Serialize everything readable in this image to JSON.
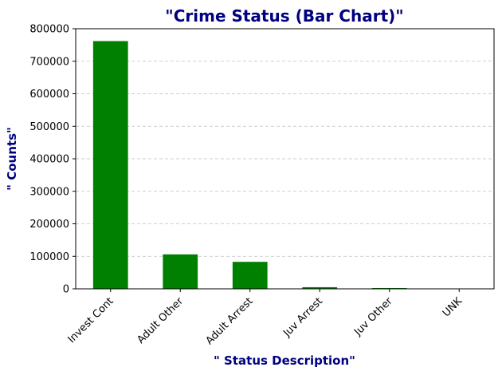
{
  "chart_data": {
    "type": "bar",
    "title": "\"Crime Status (Bar Chart)\"",
    "xlabel": "\" Status Description\"",
    "ylabel": "\" Counts\"",
    "categories": [
      "Invest Cont",
      "Adult Other",
      "Adult Arrest",
      "Juv Arrest",
      "Juv Other",
      "UNK"
    ],
    "values": [
      762000,
      106000,
      83000,
      5000,
      2500,
      5
    ],
    "ylim": [
      0,
      800000
    ],
    "yticks": [
      "0",
      "100000",
      "200000",
      "300000",
      "400000",
      "500000",
      "600000",
      "700000",
      "800000"
    ],
    "grid": "y-dashed",
    "legend": "none"
  },
  "colors": {
    "bar": "#008000",
    "title": "#000080",
    "grid": "#bfbfbf"
  }
}
